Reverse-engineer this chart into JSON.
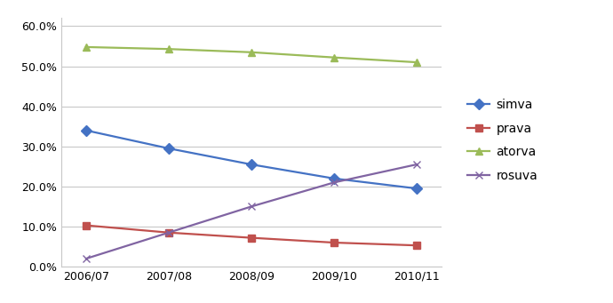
{
  "categories": [
    "2006/07",
    "2007/08",
    "2008/09",
    "2009/10",
    "2010/11"
  ],
  "series": {
    "simva": [
      0.34,
      0.295,
      0.255,
      0.22,
      0.195
    ],
    "prava": [
      0.103,
      0.085,
      0.072,
      0.06,
      0.053
    ],
    "atorva": [
      0.548,
      0.543,
      0.535,
      0.522,
      0.51
    ],
    "rosuva": [
      0.02,
      0.085,
      0.15,
      0.21,
      0.255
    ]
  },
  "colors": {
    "simva": "#4472C4",
    "prava": "#C0504D",
    "atorva": "#9BBB59",
    "rosuva": "#8064A2"
  },
  "markers": {
    "simva": "D",
    "prava": "s",
    "atorva": "^",
    "rosuva": "x"
  },
  "ylim": [
    0.0,
    0.62
  ],
  "yticks": [
    0.0,
    0.1,
    0.2,
    0.3,
    0.4,
    0.5,
    0.6
  ],
  "legend_labels": [
    "simva",
    "prava",
    "atorva",
    "rosuva"
  ],
  "background_color": "#FFFFFF",
  "grid_color": "#C8C8C8",
  "linewidth": 1.6,
  "markersize": 6,
  "tick_fontsize": 9,
  "legend_fontsize": 10
}
